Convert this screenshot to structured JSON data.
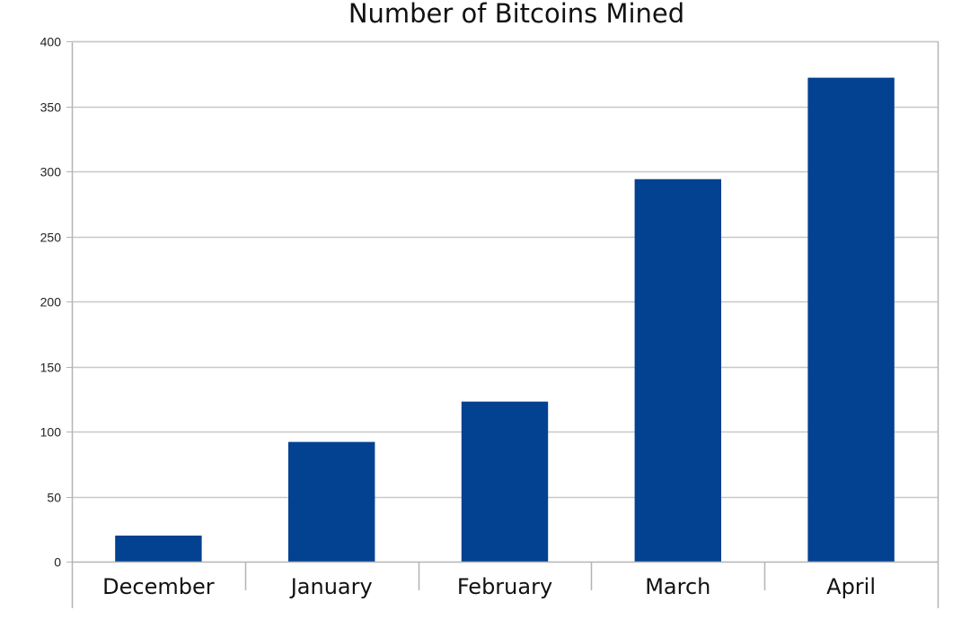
{
  "chart_data": {
    "type": "bar",
    "title": "Number of Bitcoins Mined",
    "xlabel": "",
    "ylabel": "",
    "categories": [
      "December",
      "January",
      "February",
      "March",
      "April"
    ],
    "values": [
      20,
      92,
      123,
      294,
      372
    ],
    "ylim": [
      0,
      400
    ],
    "yticks": [
      "0",
      "50",
      "100",
      "150",
      "200",
      "250",
      "300",
      "350",
      "400"
    ],
    "grid": true,
    "legend": "none",
    "bar_color": "#034191",
    "grid_color": "#c8c8c8",
    "axis_color": "#b4b4b4"
  }
}
